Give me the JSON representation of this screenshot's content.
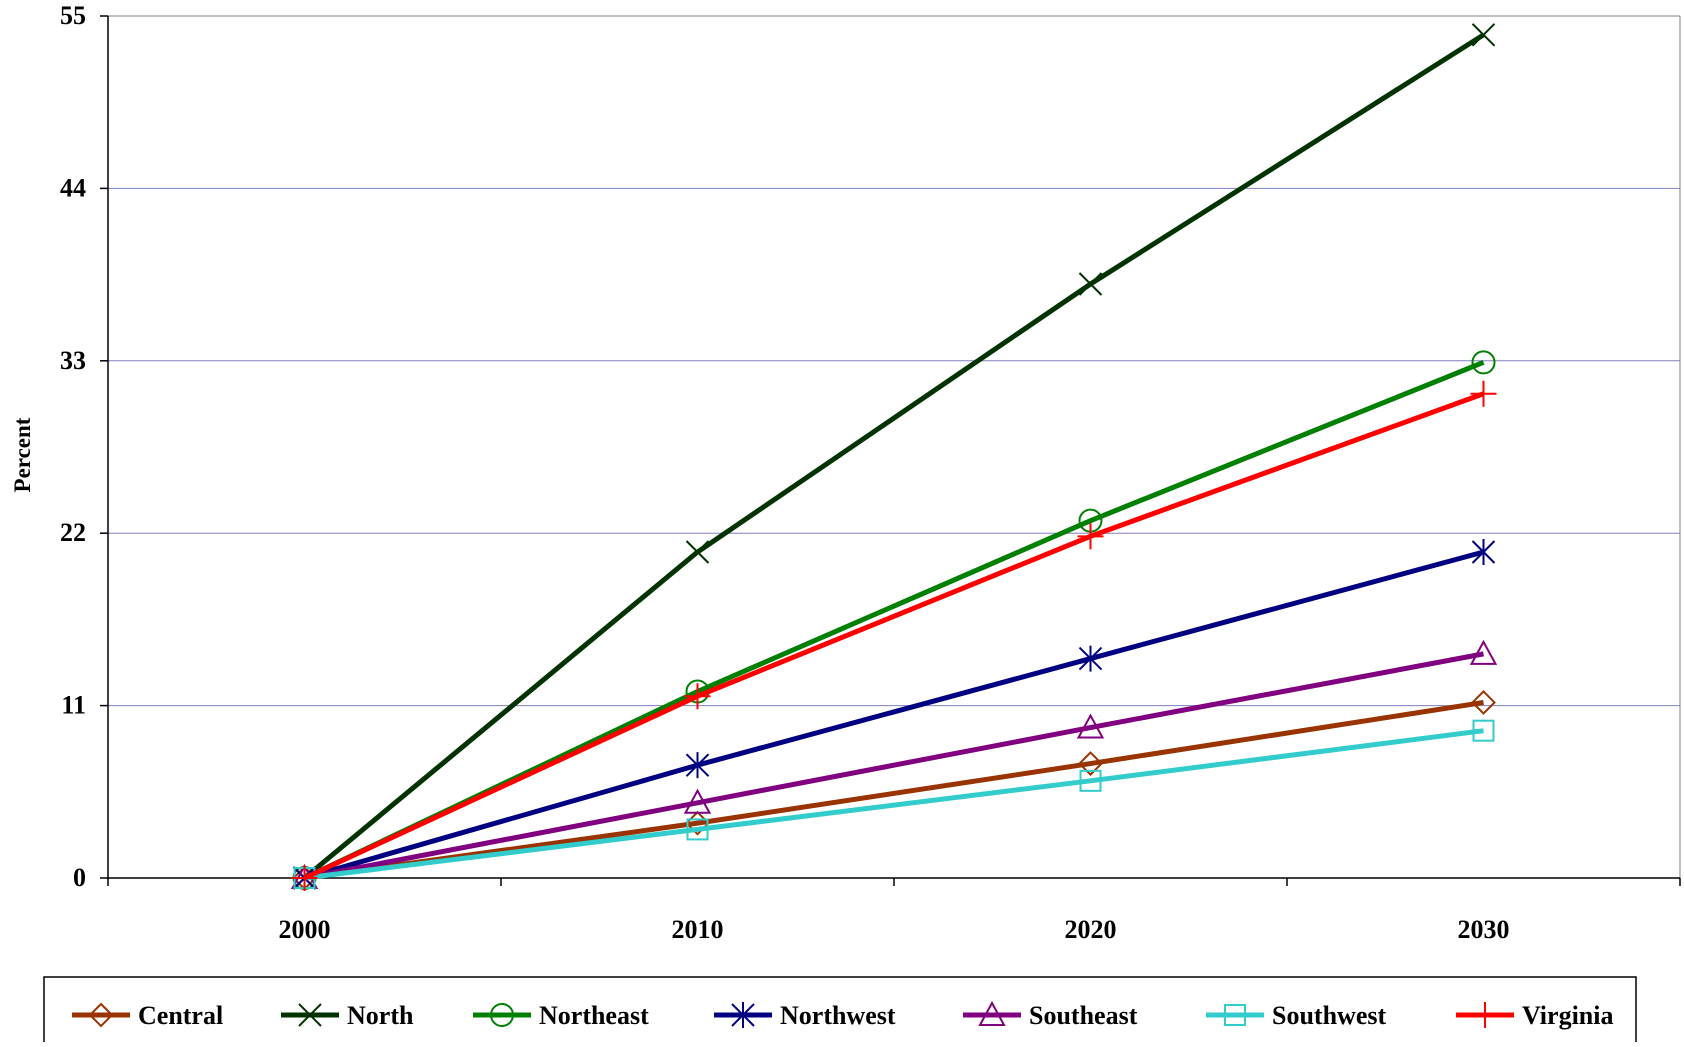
{
  "chart_data": {
    "type": "line",
    "title": "",
    "xlabel": "",
    "ylabel": "Percent",
    "categories": [
      "2000",
      "2010",
      "2020",
      "2030"
    ],
    "ylim": [
      0,
      55
    ],
    "yticks": [
      0,
      11,
      22,
      33,
      44,
      55
    ],
    "grid": {
      "horizontal": true,
      "color": "#8080c0"
    },
    "legend_position": "bottom",
    "series": [
      {
        "name": "Central",
        "color": "#993300",
        "marker": "diamond",
        "values": [
          0,
          3.5,
          7.3,
          11.2
        ]
      },
      {
        "name": "North",
        "color": "#003300",
        "marker": "x",
        "values": [
          0,
          20.8,
          37.9,
          53.8
        ]
      },
      {
        "name": "Northeast",
        "color": "#008000",
        "marker": "circle",
        "values": [
          0,
          11.9,
          22.8,
          32.9
        ]
      },
      {
        "name": "Northwest",
        "color": "#000080",
        "marker": "asterisk",
        "values": [
          0,
          7.2,
          14.0,
          20.8
        ]
      },
      {
        "name": "Southeast",
        "color": "#800080",
        "marker": "triangle",
        "values": [
          0,
          4.8,
          9.6,
          14.3
        ]
      },
      {
        "name": "Southwest",
        "color": "#33cccc",
        "marker": "square",
        "values": [
          0,
          3.1,
          6.2,
          9.4
        ]
      },
      {
        "name": "Virginia",
        "color": "#ff0000",
        "marker": "plus",
        "values": [
          0,
          11.6,
          21.8,
          30.9
        ]
      }
    ]
  }
}
